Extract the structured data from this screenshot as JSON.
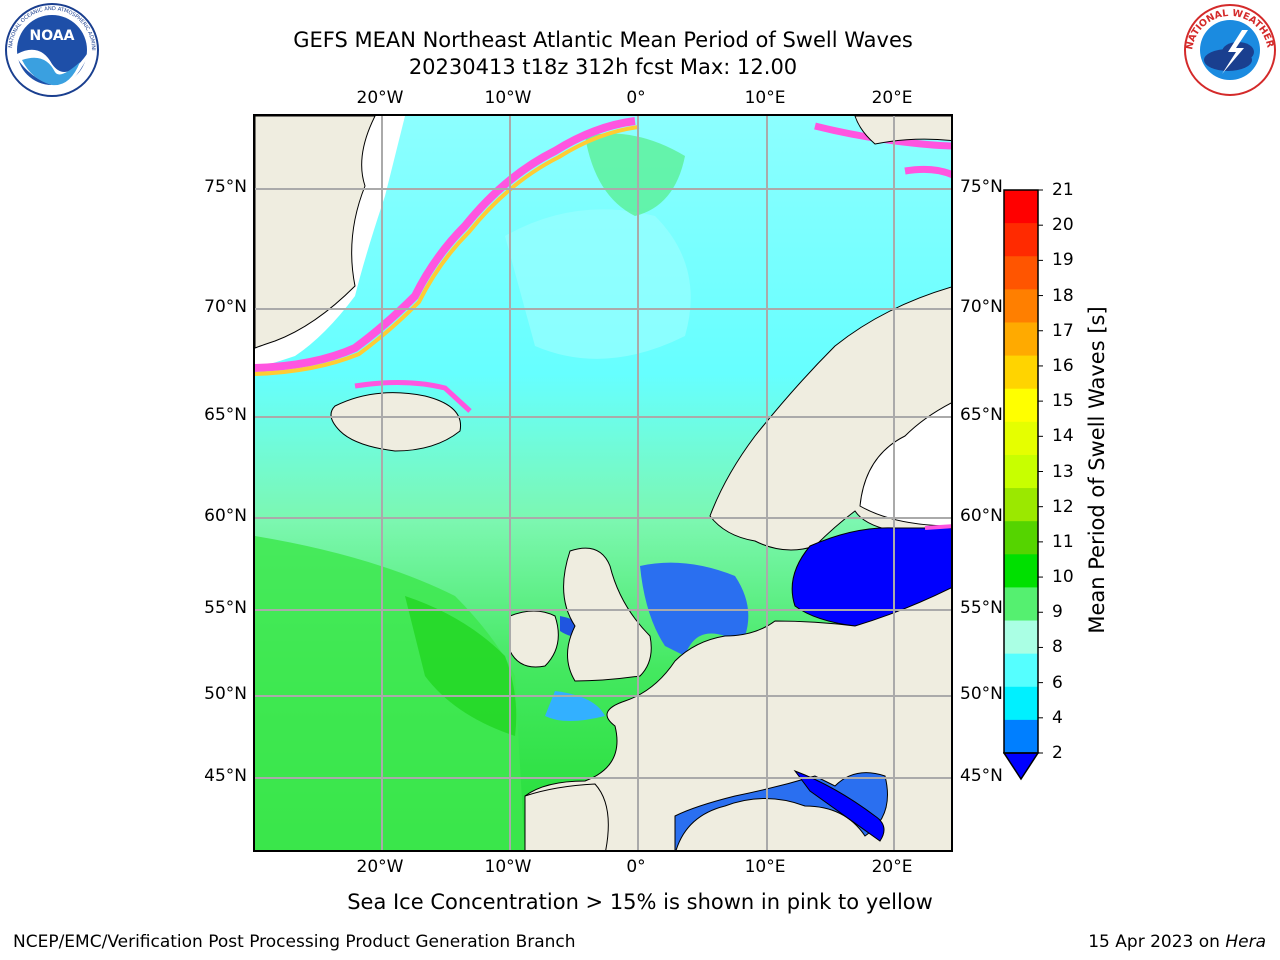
{
  "title": {
    "line1": "GEFS MEAN Northeast Atlantic Mean Period of Swell Waves",
    "line2": "20230413 t18z 312h fcst   Max: 12.00"
  },
  "map": {
    "lon_labels_top": [
      "20°W",
      "10°W",
      "0°",
      "10°E",
      "20°E"
    ],
    "lon_labels_bottom": [
      "20°W",
      "10°W",
      "0°",
      "10°E",
      "20°E"
    ],
    "lat_labels_left": [
      "75°N",
      "70°N",
      "65°N",
      "60°N",
      "55°N",
      "50°N",
      "45°N"
    ],
    "lat_labels_right": [
      "75°N",
      "70°N",
      "65°N",
      "60°N",
      "55°N",
      "50°N",
      "45°N"
    ]
  },
  "colorbar": {
    "label": "Mean Period of Swell Waves [s]",
    "ticks": [
      "21",
      "20",
      "19",
      "18",
      "17",
      "16",
      "15",
      "14",
      "13",
      "12",
      "11",
      "10",
      "9",
      "8",
      "6",
      "4",
      "2"
    ],
    "colors": [
      "#ff0000",
      "#ff2a00",
      "#ff5500",
      "#ff7f00",
      "#ffaa00",
      "#ffd400",
      "#ffff00",
      "#e5ff00",
      "#c8ff00",
      "#9be800",
      "#55d400",
      "#00e000",
      "#55f070",
      "#aaffe4",
      "#55ffff",
      "#00f0ff",
      "#007fff"
    ],
    "extend_color": "#0000ff"
  },
  "legend_note": "Sea Ice Concentration > 15% is shown in pink to yellow",
  "footer": {
    "left": "NCEP/EMC/Verification Post Processing Product Generation Branch",
    "date": "15 Apr 2023 on",
    "host": "Hera"
  },
  "logos": {
    "noaa_text": "NOAA",
    "noaa_ring_text": "NATIONAL OCEANIC AND ATMOSPHERIC ADMINISTRATION · U.S. DEPARTMENT OF COMMERCE",
    "nws_ring_text": "NATIONAL WEATHER SERVICE"
  }
}
